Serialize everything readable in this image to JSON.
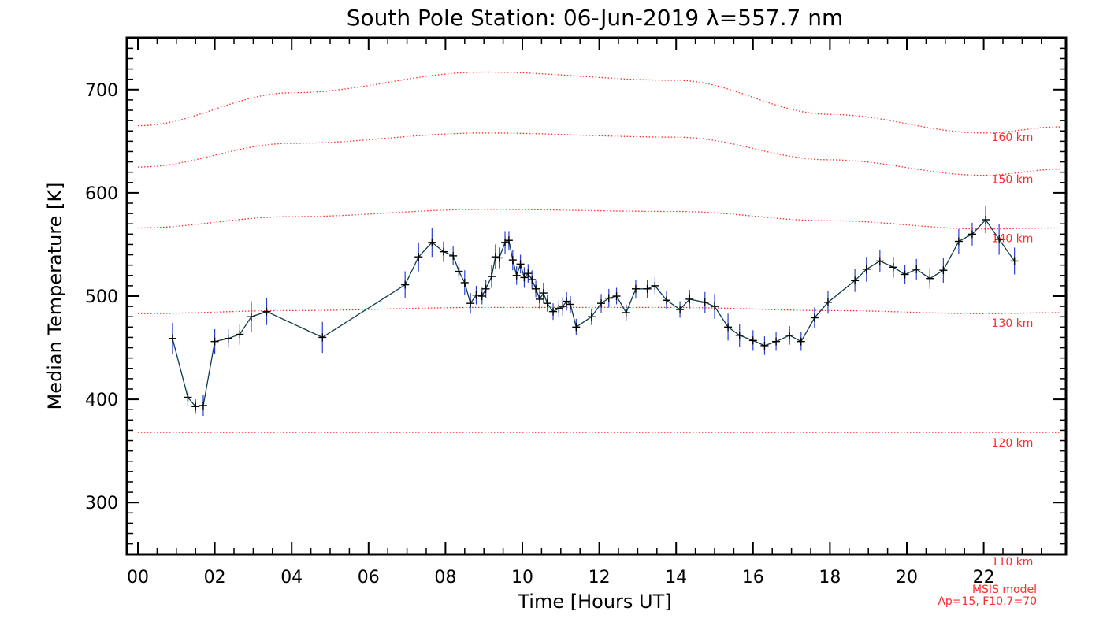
{
  "chart_data": {
    "type": "line",
    "title": "South Pole Station: 06-Jun-2019 λ=557.7 nm",
    "xlabel": "Time [Hours UT]",
    "ylabel": "Median Temperature [K]",
    "xlim": [
      0,
      24
    ],
    "ylim": [
      250,
      750
    ],
    "x_ticks": [
      {
        "value": 0,
        "label": "00"
      },
      {
        "value": 2,
        "label": "02"
      },
      {
        "value": 4,
        "label": "04"
      },
      {
        "value": 6,
        "label": "06"
      },
      {
        "value": 8,
        "label": "08"
      },
      {
        "value": 10,
        "label": "10"
      },
      {
        "value": 12,
        "label": "12"
      },
      {
        "value": 14,
        "label": "14"
      },
      {
        "value": 16,
        "label": "16"
      },
      {
        "value": 18,
        "label": "18"
      },
      {
        "value": 20,
        "label": "20"
      },
      {
        "value": 22,
        "label": "22"
      }
    ],
    "y_ticks": [
      {
        "value": 300,
        "label": "300"
      },
      {
        "value": 400,
        "label": "400"
      },
      {
        "value": 500,
        "label": "500"
      },
      {
        "value": 600,
        "label": "600"
      },
      {
        "value": 700,
        "label": "700"
      }
    ],
    "series": [
      {
        "name": "Median Temperature",
        "color": "#0b3d4a",
        "error_color": "#2a3fd6",
        "points": [
          {
            "x": 0.9,
            "y": 459,
            "err": 15
          },
          {
            "x": 1.3,
            "y": 402,
            "err": 8
          },
          {
            "x": 1.5,
            "y": 393,
            "err": 7
          },
          {
            "x": 1.7,
            "y": 394,
            "err": 10
          },
          {
            "x": 2.0,
            "y": 456,
            "err": 12
          },
          {
            "x": 2.35,
            "y": 459,
            "err": 9
          },
          {
            "x": 2.65,
            "y": 463,
            "err": 10
          },
          {
            "x": 2.95,
            "y": 480,
            "err": 15
          },
          {
            "x": 3.35,
            "y": 485,
            "err": 13
          },
          {
            "x": 4.8,
            "y": 460,
            "err": 15
          },
          {
            "x": 6.95,
            "y": 511,
            "err": 13
          },
          {
            "x": 7.3,
            "y": 538,
            "err": 14
          },
          {
            "x": 7.65,
            "y": 552,
            "err": 14
          },
          {
            "x": 7.95,
            "y": 543,
            "err": 10
          },
          {
            "x": 8.2,
            "y": 539,
            "err": 9
          },
          {
            "x": 8.35,
            "y": 524,
            "err": 8
          },
          {
            "x": 8.5,
            "y": 513,
            "err": 12
          },
          {
            "x": 8.65,
            "y": 493,
            "err": 10
          },
          {
            "x": 8.8,
            "y": 501,
            "err": 9
          },
          {
            "x": 8.95,
            "y": 500,
            "err": 8
          },
          {
            "x": 9.05,
            "y": 507,
            "err": 9
          },
          {
            "x": 9.2,
            "y": 519,
            "err": 11
          },
          {
            "x": 9.3,
            "y": 538,
            "err": 12
          },
          {
            "x": 9.4,
            "y": 537,
            "err": 10
          },
          {
            "x": 9.55,
            "y": 552,
            "err": 11
          },
          {
            "x": 9.65,
            "y": 554,
            "err": 9
          },
          {
            "x": 9.75,
            "y": 535,
            "err": 10
          },
          {
            "x": 9.85,
            "y": 520,
            "err": 9
          },
          {
            "x": 9.95,
            "y": 531,
            "err": 9
          },
          {
            "x": 10.05,
            "y": 518,
            "err": 10
          },
          {
            "x": 10.15,
            "y": 522,
            "err": 9
          },
          {
            "x": 10.25,
            "y": 516,
            "err": 9
          },
          {
            "x": 10.35,
            "y": 507,
            "err": 8
          },
          {
            "x": 10.45,
            "y": 497,
            "err": 9
          },
          {
            "x": 10.55,
            "y": 503,
            "err": 10
          },
          {
            "x": 10.65,
            "y": 493,
            "err": 8
          },
          {
            "x": 10.8,
            "y": 485,
            "err": 8
          },
          {
            "x": 10.95,
            "y": 488,
            "err": 8
          },
          {
            "x": 11.05,
            "y": 490,
            "err": 9
          },
          {
            "x": 11.15,
            "y": 495,
            "err": 9
          },
          {
            "x": 11.25,
            "y": 492,
            "err": 8
          },
          {
            "x": 11.4,
            "y": 470,
            "err": 8
          },
          {
            "x": 11.8,
            "y": 480,
            "err": 8
          },
          {
            "x": 12.05,
            "y": 493,
            "err": 9
          },
          {
            "x": 12.25,
            "y": 498,
            "err": 9
          },
          {
            "x": 12.45,
            "y": 500,
            "err": 8
          },
          {
            "x": 12.7,
            "y": 484,
            "err": 8
          },
          {
            "x": 12.95,
            "y": 507,
            "err": 9
          },
          {
            "x": 13.25,
            "y": 507,
            "err": 9
          },
          {
            "x": 13.45,
            "y": 510,
            "err": 8
          },
          {
            "x": 13.75,
            "y": 496,
            "err": 9
          },
          {
            "x": 14.1,
            "y": 487,
            "err": 8
          },
          {
            "x": 14.35,
            "y": 497,
            "err": 9
          },
          {
            "x": 14.75,
            "y": 494,
            "err": 10
          },
          {
            "x": 15.0,
            "y": 490,
            "err": 12
          },
          {
            "x": 15.35,
            "y": 470,
            "err": 13
          },
          {
            "x": 15.65,
            "y": 462,
            "err": 11
          },
          {
            "x": 16.0,
            "y": 457,
            "err": 10
          },
          {
            "x": 16.3,
            "y": 452,
            "err": 9
          },
          {
            "x": 16.6,
            "y": 456,
            "err": 9
          },
          {
            "x": 16.95,
            "y": 462,
            "err": 9
          },
          {
            "x": 17.25,
            "y": 456,
            "err": 9
          },
          {
            "x": 17.6,
            "y": 479,
            "err": 10
          },
          {
            "x": 17.95,
            "y": 494,
            "err": 11
          },
          {
            "x": 18.65,
            "y": 515,
            "err": 11
          },
          {
            "x": 18.95,
            "y": 526,
            "err": 12
          },
          {
            "x": 19.3,
            "y": 534,
            "err": 11
          },
          {
            "x": 19.65,
            "y": 528,
            "err": 10
          },
          {
            "x": 19.95,
            "y": 521,
            "err": 9
          },
          {
            "x": 20.25,
            "y": 526,
            "err": 10
          },
          {
            "x": 20.6,
            "y": 517,
            "err": 10
          },
          {
            "x": 20.95,
            "y": 525,
            "err": 12
          },
          {
            "x": 21.35,
            "y": 553,
            "err": 12
          },
          {
            "x": 21.7,
            "y": 560,
            "err": 11
          },
          {
            "x": 22.05,
            "y": 574,
            "err": 13
          },
          {
            "x": 22.4,
            "y": 555,
            "err": 15
          },
          {
            "x": 22.8,
            "y": 534,
            "err": 13
          }
        ]
      }
    ],
    "msis_curves": [
      {
        "label": "110 km",
        "color": "#ff2a2a",
        "x": [
          0,
          24
        ],
        "y": [
          250,
          250
        ]
      },
      {
        "label": "120 km",
        "color": "#ff2a2a",
        "x": [
          0,
          24
        ],
        "y": [
          368,
          368
        ]
      },
      {
        "label": "130 km",
        "color": "#ff2a2a",
        "x": [
          0,
          4,
          9,
          14,
          18,
          22,
          24
        ],
        "y": [
          483,
          486,
          489,
          489,
          486,
          483,
          484
        ]
      },
      {
        "label": "140 km",
        "color": "#ff2a2a",
        "x": [
          0,
          4,
          9,
          14,
          18,
          22,
          24
        ],
        "y": [
          566,
          577,
          584,
          582,
          573,
          565,
          566
        ]
      },
      {
        "label": "150 km",
        "color": "#ff2a2a",
        "x": [
          0,
          4,
          9,
          14,
          18,
          22,
          24
        ],
        "y": [
          625,
          648,
          658,
          654,
          632,
          617,
          623
        ]
      },
      {
        "label": "160 km",
        "color": "#ff2a2a",
        "x": [
          0,
          4,
          9,
          14,
          18,
          22,
          24
        ],
        "y": [
          665,
          697,
          717,
          709,
          676,
          658,
          664
        ]
      }
    ],
    "annotation": {
      "line1": "MSIS model",
      "line2": "Ap=15, F10.7=70",
      "color": "#ff2a2a"
    }
  }
}
